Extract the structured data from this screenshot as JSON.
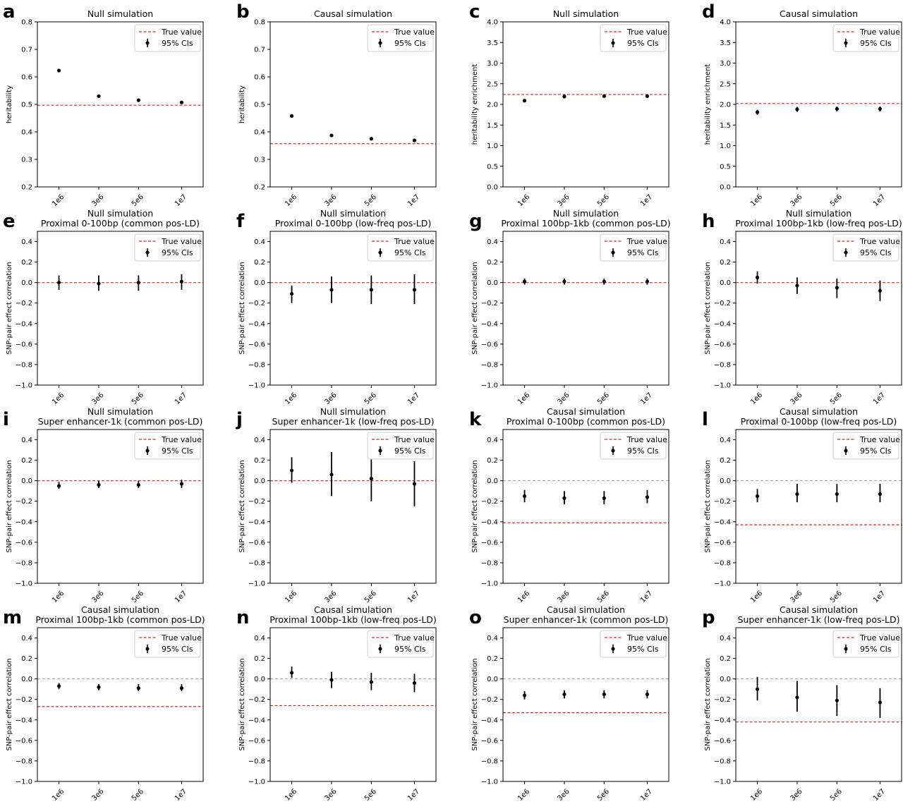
{
  "figure": {
    "legend": {
      "true_value": "True value",
      "ci": "95% CIs"
    }
  },
  "chart_data": [
    {
      "panel_letter": "a",
      "type": "scatter",
      "title": "Null simulation",
      "subtitle": "",
      "ylabel": "heritability",
      "categories": [
        "1e6",
        "3e6",
        "5e6",
        "1e7"
      ],
      "ylim": [
        0.2,
        0.8
      ],
      "yticks": [
        "0.2",
        "0.3",
        "0.4",
        "0.5",
        "0.6",
        "0.7",
        "0.8"
      ],
      "values": [
        0.623,
        0.53,
        0.515,
        0.507
      ],
      "ci_low": [
        0.62,
        0.527,
        0.512,
        0.504
      ],
      "ci_high": [
        0.626,
        0.533,
        0.518,
        0.51
      ],
      "true_value": 0.497,
      "zero_line": false,
      "legend": "top-right",
      "grid": false
    },
    {
      "panel_letter": "b",
      "type": "scatter",
      "title": "Causal simulation",
      "subtitle": "",
      "ylabel": "heritability",
      "categories": [
        "1e6",
        "3e6",
        "5e6",
        "1e7"
      ],
      "ylim": [
        0.2,
        0.8
      ],
      "yticks": [
        "0.2",
        "0.3",
        "0.4",
        "0.5",
        "0.6",
        "0.7",
        "0.8"
      ],
      "values": [
        0.458,
        0.387,
        0.375,
        0.369
      ],
      "ci_low": [
        0.455,
        0.384,
        0.372,
        0.366
      ],
      "ci_high": [
        0.461,
        0.39,
        0.378,
        0.372
      ],
      "true_value": 0.357,
      "zero_line": false,
      "legend": "top-right",
      "grid": false
    },
    {
      "panel_letter": "c",
      "type": "scatter",
      "title": "Null simulation",
      "subtitle": "",
      "ylabel": "heritability enrichment",
      "categories": [
        "1e6",
        "3e6",
        "5e6",
        "1e7"
      ],
      "ylim": [
        0.0,
        4.0
      ],
      "yticks": [
        "0.0",
        "0.5",
        "1.0",
        "1.5",
        "2.0",
        "2.5",
        "3.0",
        "3.5",
        "4.0"
      ],
      "values": [
        2.09,
        2.19,
        2.2,
        2.2
      ],
      "ci_low": [
        2.06,
        2.16,
        2.17,
        2.17
      ],
      "ci_high": [
        2.12,
        2.22,
        2.23,
        2.23
      ],
      "true_value": 2.24,
      "zero_line": false,
      "legend": "top-right",
      "grid": false
    },
    {
      "panel_letter": "d",
      "type": "scatter",
      "title": "Causal simulation",
      "subtitle": "",
      "ylabel": "heritability enrichment",
      "categories": [
        "1e6",
        "3e6",
        "5e6",
        "1e7"
      ],
      "ylim": [
        0.0,
        4.0
      ],
      "yticks": [
        "0.0",
        "0.5",
        "1.0",
        "1.5",
        "2.0",
        "2.5",
        "3.0",
        "3.5",
        "4.0"
      ],
      "values": [
        1.81,
        1.88,
        1.89,
        1.89
      ],
      "ci_low": [
        1.75,
        1.82,
        1.83,
        1.83
      ],
      "ci_high": [
        1.87,
        1.94,
        1.95,
        1.95
      ],
      "true_value": 2.02,
      "zero_line": false,
      "legend": "top-right",
      "grid": false
    },
    {
      "panel_letter": "e",
      "type": "scatter",
      "title": "Null simulation",
      "subtitle": "Proximal 0-100bp (common pos-LD)",
      "ylabel": "SNP-pair effect correlation",
      "categories": [
        "1e6",
        "3e6",
        "5e6",
        "1e7"
      ],
      "ylim": [
        -1.0,
        0.5
      ],
      "yticks": [
        "−1.0",
        "−0.8",
        "−0.6",
        "−0.4",
        "−0.2",
        "0.0",
        "0.2",
        "0.4"
      ],
      "values": [
        0.0,
        -0.01,
        0.0,
        0.01
      ],
      "ci_low": [
        -0.07,
        -0.08,
        -0.08,
        -0.07
      ],
      "ci_high": [
        0.07,
        0.07,
        0.07,
        0.08
      ],
      "true_value": 0.0,
      "zero_line": false,
      "legend": "top-right",
      "grid": false
    },
    {
      "panel_letter": "f",
      "type": "scatter",
      "title": "Null simulation",
      "subtitle": "Proximal 0-100bp (low-freq pos-LD)",
      "ylabel": "SNP-pair effect correlation",
      "categories": [
        "1e6",
        "3e6",
        "5e6",
        "1e7"
      ],
      "ylim": [
        -1.0,
        0.5
      ],
      "yticks": [
        "−1.0",
        "−0.8",
        "−0.6",
        "−0.4",
        "−0.2",
        "0.0",
        "0.2",
        "0.4"
      ],
      "values": [
        -0.11,
        -0.07,
        -0.07,
        -0.07
      ],
      "ci_low": [
        -0.2,
        -0.2,
        -0.21,
        -0.21
      ],
      "ci_high": [
        -0.03,
        0.06,
        0.07,
        0.08
      ],
      "true_value": 0.0,
      "zero_line": false,
      "legend": "top-right",
      "grid": false
    },
    {
      "panel_letter": "g",
      "type": "scatter",
      "title": "Null simulation",
      "subtitle": "Proximal 100bp-1kb (common pos-LD)",
      "ylabel": "SNP-pair effect correlation",
      "categories": [
        "1e6",
        "3e6",
        "5e6",
        "1e7"
      ],
      "ylim": [
        -1.0,
        0.5
      ],
      "yticks": [
        "−1.0",
        "−0.8",
        "−0.6",
        "−0.4",
        "−0.2",
        "0.0",
        "0.2",
        "0.4"
      ],
      "values": [
        0.01,
        0.01,
        0.01,
        0.01
      ],
      "ci_low": [
        -0.02,
        -0.02,
        -0.02,
        -0.02
      ],
      "ci_high": [
        0.04,
        0.04,
        0.04,
        0.04
      ],
      "true_value": 0.0,
      "zero_line": false,
      "legend": "top-right",
      "grid": false
    },
    {
      "panel_letter": "h",
      "type": "scatter",
      "title": "Null simulation",
      "subtitle": "Proximal 100bp-1kb (low-freq pos-LD)",
      "ylabel": "SNP-pair effect correlation",
      "categories": [
        "1e6",
        "3e6",
        "5e6",
        "1e7"
      ],
      "ylim": [
        -1.0,
        0.5
      ],
      "yticks": [
        "−1.0",
        "−0.8",
        "−0.6",
        "−0.4",
        "−0.2",
        "0.0",
        "0.2",
        "0.4"
      ],
      "values": [
        0.05,
        -0.03,
        -0.05,
        -0.08
      ],
      "ci_low": [
        -0.01,
        -0.11,
        -0.15,
        -0.18
      ],
      "ci_high": [
        0.11,
        0.05,
        0.04,
        0.02
      ],
      "true_value": 0.0,
      "zero_line": false,
      "legend": "top-right",
      "grid": false
    },
    {
      "panel_letter": "i",
      "type": "scatter",
      "title": "Null simulation",
      "subtitle": "Super enhancer-1k (common pos-LD)",
      "ylabel": "SNP-pair effect correlation",
      "categories": [
        "1e6",
        "3e6",
        "5e6",
        "1e7"
      ],
      "ylim": [
        -1.0,
        0.5
      ],
      "yticks": [
        "−1.0",
        "−0.8",
        "−0.6",
        "−0.4",
        "−0.2",
        "0.0",
        "0.2",
        "0.4"
      ],
      "values": [
        -0.05,
        -0.04,
        -0.04,
        -0.03
      ],
      "ci_low": [
        -0.08,
        -0.07,
        -0.07,
        -0.07
      ],
      "ci_high": [
        -0.01,
        0.0,
        0.0,
        0.01
      ],
      "true_value": 0.0,
      "zero_line": false,
      "legend": "top-right",
      "grid": false
    },
    {
      "panel_letter": "j",
      "type": "scatter",
      "title": "Null simulation",
      "subtitle": "Super enhancer-1k (low-freq pos-LD)",
      "ylabel": "SNP-pair effect correlation",
      "categories": [
        "1e6",
        "3e6",
        "5e6",
        "1e7"
      ],
      "ylim": [
        -1.0,
        0.5
      ],
      "yticks": [
        "−1.0",
        "−0.8",
        "−0.6",
        "−0.4",
        "−0.2",
        "0.0",
        "0.2",
        "0.4"
      ],
      "values": [
        0.1,
        0.06,
        0.02,
        -0.03
      ],
      "ci_low": [
        -0.02,
        -0.15,
        -0.2,
        -0.25
      ],
      "ci_high": [
        0.23,
        0.28,
        0.24,
        0.19
      ],
      "true_value": 0.0,
      "zero_line": false,
      "legend": "top-right",
      "grid": false
    },
    {
      "panel_letter": "k",
      "type": "scatter",
      "title": "Causal simulation",
      "subtitle": "Proximal 0-100bp (common pos-LD)",
      "ylabel": "SNP-pair effect correlation",
      "categories": [
        "1e6",
        "3e6",
        "5e6",
        "1e7"
      ],
      "ylim": [
        -1.0,
        0.5
      ],
      "yticks": [
        "−1.0",
        "−0.8",
        "−0.6",
        "−0.4",
        "−0.2",
        "0.0",
        "0.2",
        "0.4"
      ],
      "values": [
        -0.15,
        -0.17,
        -0.17,
        -0.16
      ],
      "ci_low": [
        -0.21,
        -0.23,
        -0.23,
        -0.22
      ],
      "ci_high": [
        -0.09,
        -0.1,
        -0.1,
        -0.09
      ],
      "true_value": -0.41,
      "zero_line": true,
      "legend": "top-right",
      "grid": false
    },
    {
      "panel_letter": "l",
      "type": "scatter",
      "title": "Causal simulation",
      "subtitle": "Proximal 0-100bp (low-freq pos-LD)",
      "ylabel": "SNP-pair effect correlation",
      "categories": [
        "1e6",
        "3e6",
        "5e6",
        "1e7"
      ],
      "ylim": [
        -1.0,
        0.5
      ],
      "yticks": [
        "−1.0",
        "−0.8",
        "−0.6",
        "−0.4",
        "−0.2",
        "0.0",
        "0.2",
        "0.4"
      ],
      "values": [
        -0.15,
        -0.13,
        -0.13,
        -0.13
      ],
      "ci_low": [
        -0.21,
        -0.21,
        -0.21,
        -0.21
      ],
      "ci_high": [
        -0.08,
        -0.03,
        -0.03,
        -0.03
      ],
      "true_value": -0.43,
      "zero_line": true,
      "legend": "top-right",
      "grid": false
    },
    {
      "panel_letter": "m",
      "type": "scatter",
      "title": "Causal simulation",
      "subtitle": "Proximal 100bp-1kb (common pos-LD)",
      "ylabel": "SNP-pair effect correlation",
      "categories": [
        "1e6",
        "3e6",
        "5e6",
        "1e7"
      ],
      "ylim": [
        -1.0,
        0.5
      ],
      "yticks": [
        "−1.0",
        "−0.8",
        "−0.6",
        "−0.4",
        "−0.2",
        "0.0",
        "0.2",
        "0.4"
      ],
      "values": [
        -0.07,
        -0.08,
        -0.09,
        -0.09
      ],
      "ci_low": [
        -0.1,
        -0.11,
        -0.12,
        -0.12
      ],
      "ci_high": [
        -0.04,
        -0.05,
        -0.05,
        -0.05
      ],
      "true_value": -0.27,
      "zero_line": true,
      "legend": "top-right",
      "grid": false
    },
    {
      "panel_letter": "n",
      "type": "scatter",
      "title": "Causal simulation",
      "subtitle": "Proximal 100bp-1kb (low-freq pos-LD)",
      "ylabel": "SNP-pair effect correlation",
      "categories": [
        "1e6",
        "3e6",
        "5e6",
        "1e7"
      ],
      "ylim": [
        -1.0,
        0.5
      ],
      "yticks": [
        "−1.0",
        "−0.8",
        "−0.6",
        "−0.4",
        "−0.2",
        "0.0",
        "0.2",
        "0.4"
      ],
      "values": [
        0.06,
        -0.01,
        -0.03,
        -0.04
      ],
      "ci_low": [
        0.01,
        -0.09,
        -0.11,
        -0.13
      ],
      "ci_high": [
        0.12,
        0.07,
        0.06,
        0.05
      ],
      "true_value": -0.26,
      "zero_line": true,
      "legend": "top-right",
      "grid": false
    },
    {
      "panel_letter": "o",
      "type": "scatter",
      "title": "Causal simulation",
      "subtitle": "Super enhancer-1k (common pos-LD)",
      "ylabel": "SNP-pair effect correlation",
      "categories": [
        "1e6",
        "3e6",
        "5e6",
        "1e7"
      ],
      "ylim": [
        -1.0,
        0.5
      ],
      "yticks": [
        "−1.0",
        "−0.8",
        "−0.6",
        "−0.4",
        "−0.2",
        "0.0",
        "0.2",
        "0.4"
      ],
      "values": [
        -0.16,
        -0.15,
        -0.15,
        -0.15
      ],
      "ci_low": [
        -0.2,
        -0.19,
        -0.19,
        -0.19
      ],
      "ci_high": [
        -0.12,
        -0.11,
        -0.11,
        -0.11
      ],
      "true_value": -0.33,
      "zero_line": true,
      "legend": "top-right",
      "grid": false
    },
    {
      "panel_letter": "p",
      "type": "scatter",
      "title": "Causal simulation",
      "subtitle": "Super enhancer-1k (low-freq pos-LD)",
      "ylabel": "SNP-pair effect correlation",
      "categories": [
        "1e6",
        "3e6",
        "5e6",
        "1e7"
      ],
      "ylim": [
        -1.0,
        0.5
      ],
      "yticks": [
        "−1.0",
        "−0.8",
        "−0.6",
        "−0.4",
        "−0.2",
        "0.0",
        "0.2",
        "0.4"
      ],
      "values": [
        -0.1,
        -0.18,
        -0.21,
        -0.23
      ],
      "ci_low": [
        -0.21,
        -0.32,
        -0.36,
        -0.38
      ],
      "ci_high": [
        0.02,
        -0.02,
        -0.06,
        -0.09
      ],
      "true_value": -0.42,
      "zero_line": true,
      "legend": "top-right",
      "grid": false
    }
  ]
}
